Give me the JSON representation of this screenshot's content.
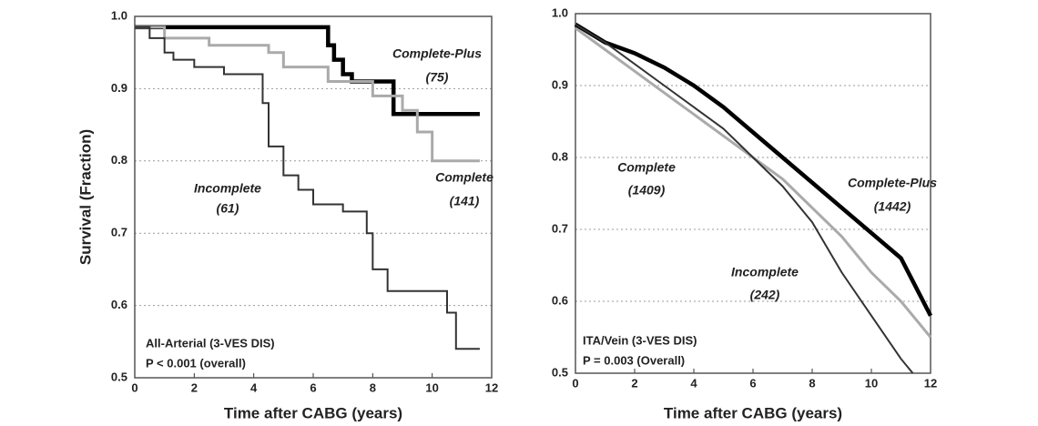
{
  "chart_data": [
    {
      "type": "step",
      "ylabel": "Survival  (Fraction)",
      "xlabel": "Time after CABG  (years)",
      "xlim": [
        0,
        12
      ],
      "xticks": [
        0,
        2,
        4,
        6,
        8,
        10,
        12
      ],
      "ylim": [
        0.5,
        1.0
      ],
      "yticks": [
        {
          "value": 0.5,
          "label": "0.5"
        },
        {
          "value": 0.6,
          "label": "0.6"
        },
        {
          "value": 0.7,
          "label": "0.7"
        },
        {
          "value": 0.8,
          "label": "0.8"
        },
        {
          "value": 0.9,
          "label": "0.9"
        },
        {
          "value": 1.0,
          "label": "1.0"
        }
      ],
      "grid": true,
      "notes": [
        "All-Arterial (3-VES DIS)",
        "P < 0.001 (overall)"
      ],
      "series": [
        {
          "name": "Complete-Plus",
          "n_label": "(75)",
          "color": "#000000",
          "x": [
            0,
            6.5,
            6.7,
            7.0,
            7.3,
            8.7,
            11.6
          ],
          "values": [
            0.985,
            0.96,
            0.94,
            0.92,
            0.91,
            0.865,
            0.865
          ]
        },
        {
          "name": "Complete",
          "n_label": "(141)",
          "color": "#aaaaaa",
          "x": [
            0,
            1,
            2.5,
            4.5,
            5,
            6.5,
            8,
            9,
            9.5,
            10,
            11.6
          ],
          "values": [
            0.985,
            0.97,
            0.96,
            0.95,
            0.93,
            0.91,
            0.89,
            0.87,
            0.84,
            0.8,
            0.8
          ]
        },
        {
          "name": "Incomplete",
          "n_label": "(61)",
          "color": "#333333",
          "x": [
            0,
            0.5,
            1,
            1.3,
            2,
            3,
            4.3,
            4.5,
            5,
            5.5,
            6,
            7,
            7.8,
            8,
            8.5,
            10.5,
            10.8,
            11.6
          ],
          "values": [
            0.985,
            0.97,
            0.95,
            0.94,
            0.93,
            0.92,
            0.88,
            0.82,
            0.78,
            0.76,
            0.74,
            0.73,
            0.7,
            0.65,
            0.62,
            0.59,
            0.54,
            0.54
          ]
        }
      ]
    },
    {
      "type": "line",
      "xlabel": "Time after CABG  (years)",
      "xlim": [
        0,
        12
      ],
      "xticks": [
        0,
        2,
        4,
        6,
        8,
        10,
        12
      ],
      "ylim": [
        0.5,
        1.0
      ],
      "yticks": [
        {
          "value": 0.5,
          "label": "0.5"
        },
        {
          "value": 0.6,
          "label": "0.6"
        },
        {
          "value": 0.7,
          "label": "0.7"
        },
        {
          "value": 0.8,
          "label": "0.8"
        },
        {
          "value": 0.9,
          "label": "0.9"
        },
        {
          "value": 1.0,
          "label": "1.0"
        }
      ],
      "grid": true,
      "notes": [
        "ITA/Vein (3-VES DIS)",
        "P = 0.003 (Overall)"
      ],
      "series": [
        {
          "name": "Complete",
          "n_label": "(1409)",
          "color": "#aaaaaa",
          "x": [
            0,
            1,
            2,
            3,
            4,
            5,
            6,
            7,
            8,
            9,
            10,
            11,
            12
          ],
          "values": [
            0.98,
            0.95,
            0.92,
            0.89,
            0.86,
            0.83,
            0.8,
            0.77,
            0.73,
            0.69,
            0.64,
            0.6,
            0.55
          ]
        },
        {
          "name": "Complete-Plus",
          "n_label": "(1442)",
          "color": "#000000",
          "x": [
            0,
            1,
            2,
            3,
            4,
            5,
            6,
            7,
            8,
            9,
            10,
            11,
            12
          ],
          "values": [
            0.985,
            0.96,
            0.945,
            0.925,
            0.9,
            0.87,
            0.835,
            0.8,
            0.765,
            0.73,
            0.695,
            0.66,
            0.58
          ]
        },
        {
          "name": "Incomplete",
          "n_label": "(242)",
          "color": "#333333",
          "x": [
            0,
            1,
            2,
            3,
            4,
            5,
            6,
            7,
            8,
            9,
            10,
            11,
            11.4
          ],
          "values": [
            0.985,
            0.96,
            0.93,
            0.9,
            0.87,
            0.84,
            0.8,
            0.76,
            0.71,
            0.64,
            0.58,
            0.52,
            0.5
          ]
        }
      ]
    }
  ]
}
